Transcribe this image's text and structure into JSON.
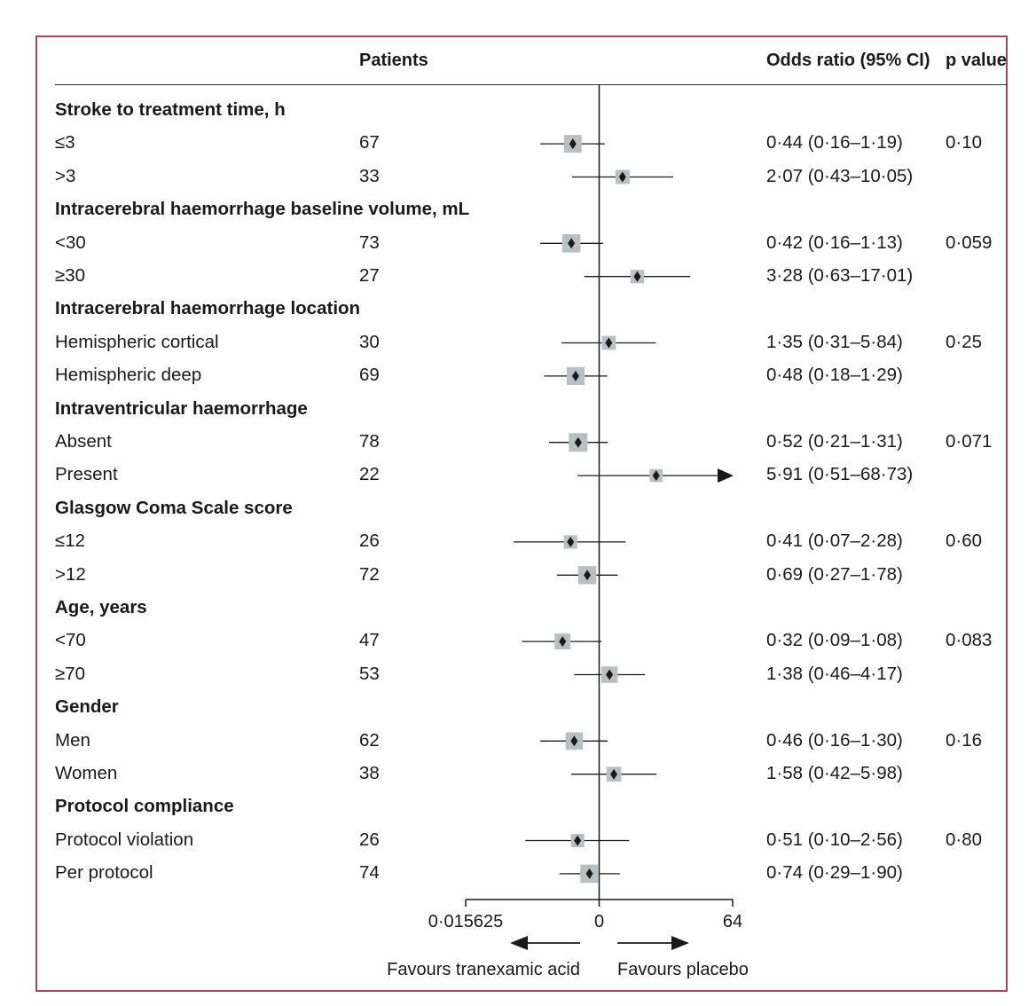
{
  "headers": {
    "patients": "Patients",
    "odds_ratio": "Odds ratio (95% CI)",
    "p_value": "p value"
  },
  "colors": {
    "frame": "#a0485f",
    "square": "#b9bfc3",
    "marker": "#1a1a1a"
  },
  "rows": [
    {
      "kind": "group",
      "label": "Stroke to treatment time, h"
    },
    {
      "kind": "item",
      "label": "≤3",
      "patients": "67",
      "or_text": "0·44 (0·16–1·19)",
      "p": "0·10"
    },
    {
      "kind": "item",
      "label": ">3",
      "patients": "33",
      "or_text": "2·07 (0·43–10·05)",
      "p": ""
    },
    {
      "kind": "group",
      "label": "Intracerebral haemorrhage baseline volume, mL"
    },
    {
      "kind": "item",
      "label": "<30",
      "patients": "73",
      "or_text": "0·42 (0·16–1·13)",
      "p": "0·059"
    },
    {
      "kind": "item",
      "label": "≥30",
      "patients": "27",
      "or_text": "3·28 (0·63–17·01)",
      "p": ""
    },
    {
      "kind": "group",
      "label": "Intracerebral haemorrhage location"
    },
    {
      "kind": "item",
      "label": "Hemispheric cortical",
      "patients": "30",
      "or_text": "1·35 (0·31–5·84)",
      "p": "0·25"
    },
    {
      "kind": "item",
      "label": "Hemispheric deep",
      "patients": "69",
      "or_text": "0·48 (0·18–1·29)",
      "p": ""
    },
    {
      "kind": "group",
      "label": "Intraventricular haemorrhage"
    },
    {
      "kind": "item",
      "label": "Absent",
      "patients": "78",
      "or_text": "0·52 (0·21–1·31)",
      "p": "0·071"
    },
    {
      "kind": "item",
      "label": "Present",
      "patients": "22",
      "or_text": "5·91 (0·51–68·73)",
      "p": ""
    },
    {
      "kind": "group",
      "label": "Glasgow Coma Scale score"
    },
    {
      "kind": "item",
      "label": "≤12",
      "patients": "26",
      "or_text": "0·41 (0·07–2·28)",
      "p": "0·60"
    },
    {
      "kind": "item",
      "label": ">12",
      "patients": "72",
      "or_text": "0·69 (0·27–1·78)",
      "p": ""
    },
    {
      "kind": "group",
      "label": "Age, years"
    },
    {
      "kind": "item",
      "label": "<70",
      "patients": "47",
      "or_text": "0·32 (0·09–1·08)",
      "p": "0·083"
    },
    {
      "kind": "item",
      "label": "≥70",
      "patients": "53",
      "or_text": "1·38 (0·46–4·17)",
      "p": ""
    },
    {
      "kind": "group",
      "label": "Gender"
    },
    {
      "kind": "item",
      "label": "Men",
      "patients": "62",
      "or_text": "0·46 (0·16–1·30)",
      "p": "0·16"
    },
    {
      "kind": "item",
      "label": "Women",
      "patients": "38",
      "or_text": "1·58 (0·42–5·98)",
      "p": ""
    },
    {
      "kind": "group",
      "label": "Protocol compliance"
    },
    {
      "kind": "item",
      "label": "Protocol violation",
      "patients": "26",
      "or_text": "0·51 (0·10–2·56)",
      "p": "0·80"
    },
    {
      "kind": "item",
      "label": "Per protocol",
      "patients": "74",
      "or_text": "0·74 (0·29–1·90)",
      "p": ""
    }
  ],
  "chart_data": {
    "type": "forest",
    "scale": "log2",
    "xlim": [
      0.015625,
      64
    ],
    "x_tick_labels": [
      "0·015625",
      "0",
      "64"
    ],
    "reference_value": 1,
    "direction_left": "Favours tranexamic acid",
    "direction_right": "Favours placebo",
    "estimates": [
      {
        "subgroup": "≤3",
        "or": 0.44,
        "lo": 0.16,
        "hi": 1.19,
        "n": 67
      },
      {
        "subgroup": ">3",
        "or": 2.07,
        "lo": 0.43,
        "hi": 10.05,
        "n": 33
      },
      {
        "subgroup": "<30",
        "or": 0.42,
        "lo": 0.16,
        "hi": 1.13,
        "n": 73
      },
      {
        "subgroup": "≥30",
        "or": 3.28,
        "lo": 0.63,
        "hi": 17.01,
        "n": 27
      },
      {
        "subgroup": "Hemispheric cortical",
        "or": 1.35,
        "lo": 0.31,
        "hi": 5.84,
        "n": 30
      },
      {
        "subgroup": "Hemispheric deep",
        "or": 0.48,
        "lo": 0.18,
        "hi": 1.29,
        "n": 69
      },
      {
        "subgroup": "Absent",
        "or": 0.52,
        "lo": 0.21,
        "hi": 1.31,
        "n": 78
      },
      {
        "subgroup": "Present",
        "or": 5.91,
        "lo": 0.51,
        "hi": 68.73,
        "n": 22
      },
      {
        "subgroup": "≤12",
        "or": 0.41,
        "lo": 0.07,
        "hi": 2.28,
        "n": 26
      },
      {
        "subgroup": ">12",
        "or": 0.69,
        "lo": 0.27,
        "hi": 1.78,
        "n": 72
      },
      {
        "subgroup": "<70",
        "or": 0.32,
        "lo": 0.09,
        "hi": 1.08,
        "n": 47
      },
      {
        "subgroup": "≥70",
        "or": 1.38,
        "lo": 0.46,
        "hi": 4.17,
        "n": 53
      },
      {
        "subgroup": "Men",
        "or": 0.46,
        "lo": 0.16,
        "hi": 1.3,
        "n": 62
      },
      {
        "subgroup": "Women",
        "or": 1.58,
        "lo": 0.42,
        "hi": 5.98,
        "n": 38
      },
      {
        "subgroup": "Protocol violation",
        "or": 0.51,
        "lo": 0.1,
        "hi": 2.56,
        "n": 26
      },
      {
        "subgroup": "Per protocol",
        "or": 0.74,
        "lo": 0.29,
        "hi": 1.9,
        "n": 74
      }
    ]
  }
}
